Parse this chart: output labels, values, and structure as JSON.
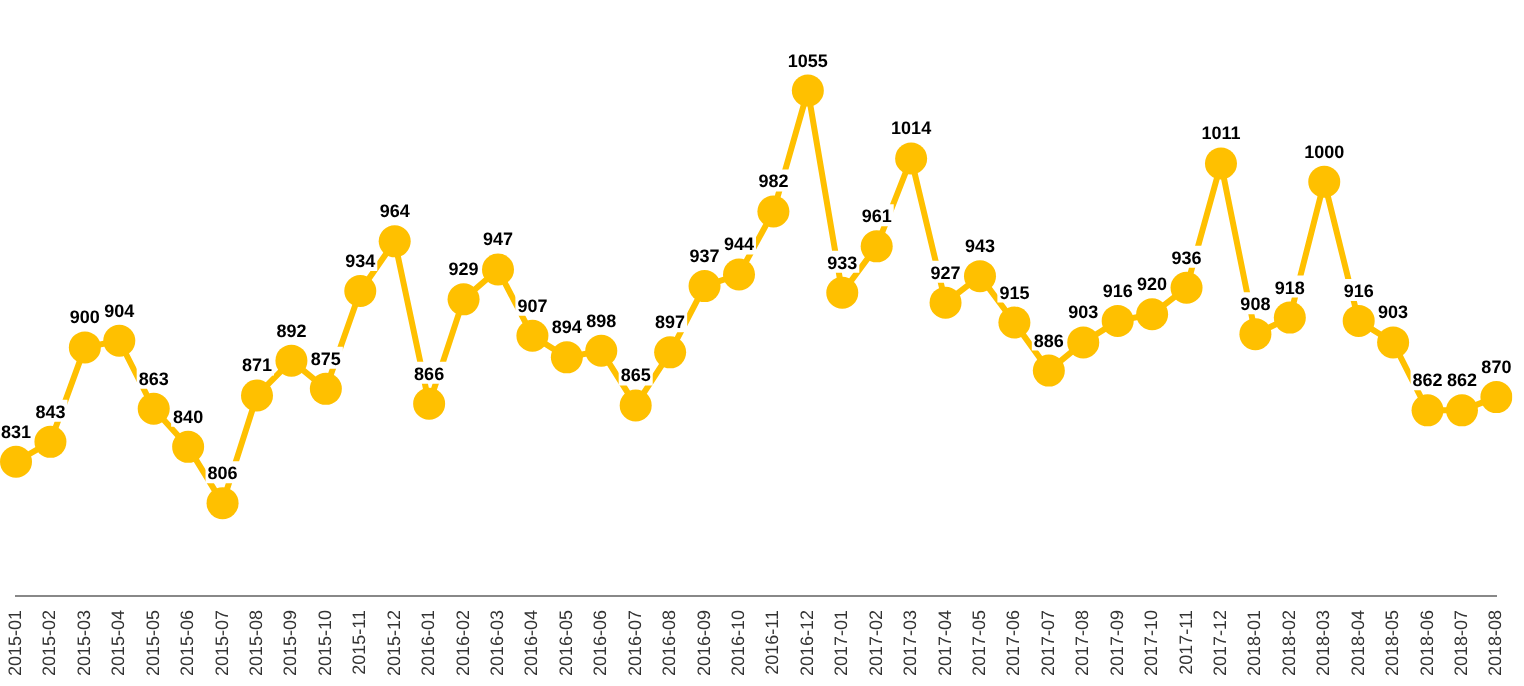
{
  "chart_data": {
    "type": "line",
    "categories": [
      "2015-01",
      "2015-02",
      "2015-03",
      "2015-04",
      "2015-05",
      "2015-06",
      "2015-07",
      "2015-08",
      "2015-09",
      "2015-10",
      "2015-11",
      "2015-12",
      "2016-01",
      "2016-02",
      "2016-03",
      "2016-04",
      "2016-05",
      "2016-06",
      "2016-07",
      "2016-08",
      "2016-09",
      "2016-10",
      "2016-11",
      "2016-12",
      "2017-01",
      "2017-02",
      "2017-03",
      "2017-04",
      "2017-05",
      "2017-06",
      "2017-07",
      "2017-08",
      "2017-09",
      "2017-10",
      "2017-11",
      "2017-12",
      "2018-01",
      "2018-02",
      "2018-03",
      "2018-04",
      "2018-05",
      "2018-06",
      "2018-07",
      "2018-08"
    ],
    "series": [
      {
        "color": "#ffc000",
        "values": [
          831,
          843,
          900,
          904,
          863,
          840,
          806,
          871,
          892,
          875,
          934,
          964,
          866,
          929,
          947,
          907,
          894,
          898,
          865,
          897,
          937,
          944,
          982,
          1055,
          933,
          961,
          1014,
          927,
          943,
          915,
          886,
          903,
          916,
          920,
          936,
          1011,
          908,
          918,
          1000,
          916,
          903,
          862,
          862,
          870
        ]
      }
    ],
    "tick_labels": "x",
    "data_labels": true,
    "grid": false,
    "legend": false,
    "marker": "circle",
    "line_style": "solid"
  }
}
